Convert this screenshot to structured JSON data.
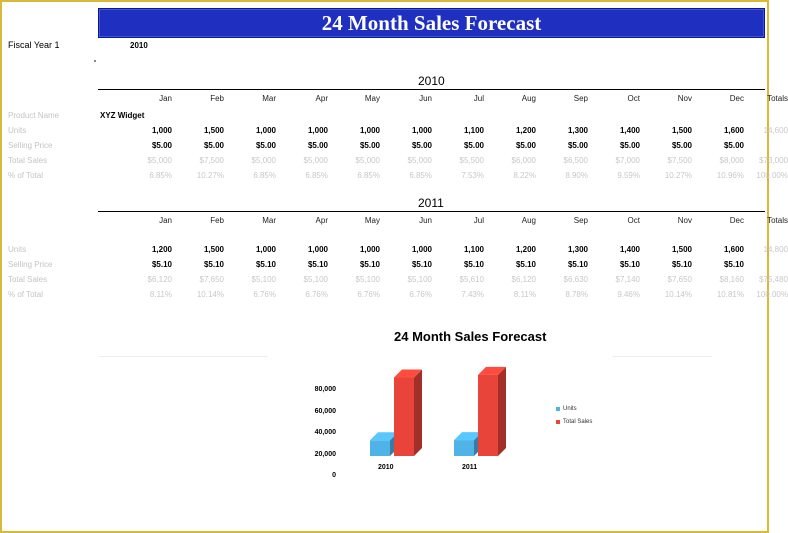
{
  "title": "24 Month Sales Forecast",
  "fiscal_year": {
    "label": "Fiscal Year 1",
    "value": "2010"
  },
  "columns": [
    "Jan",
    "Feb",
    "Mar",
    "Apr",
    "May",
    "Jun",
    "Jul",
    "Aug",
    "Sep",
    "Oct",
    "Nov",
    "Dec",
    "Totals"
  ],
  "years": [
    {
      "year": "2010",
      "rows": [
        {
          "label": "Product Name",
          "bold": true,
          "cells": [
            "XYZ Widget"
          ]
        },
        {
          "label": "Units",
          "bold": false,
          "cells": [
            "1,000",
            "1,500",
            "1,000",
            "1,000",
            "1,000",
            "1,000",
            "1,100",
            "1,200",
            "1,300",
            "1,400",
            "1,500",
            "1,600",
            "14,600"
          ]
        },
        {
          "label": "Selling Price",
          "bold": false,
          "cells": [
            "$5.00",
            "$5.00",
            "$5.00",
            "$5.00",
            "$5.00",
            "$5.00",
            "$5.00",
            "$5.00",
            "$5.00",
            "$5.00",
            "$5.00",
            "$5.00",
            ""
          ]
        },
        {
          "label": "Total Sales",
          "bold": false,
          "cells": [
            "$5,000",
            "$7,500",
            "$5,000",
            "$5,000",
            "$5,000",
            "$5,000",
            "$5,500",
            "$6,000",
            "$6,500",
            "$7,000",
            "$7,500",
            "$8,000",
            "$73,000"
          ]
        },
        {
          "label": "% of Total",
          "bold": false,
          "cells": [
            "6.85%",
            "10.27%",
            "6.85%",
            "6.85%",
            "6.85%",
            "6.85%",
            "7.53%",
            "8.22%",
            "8.90%",
            "9.59%",
            "10.27%",
            "10.96%",
            "100.00%"
          ]
        }
      ]
    },
    {
      "year": "2011",
      "rows": [
        {
          "label": "Units",
          "bold": false,
          "cells": [
            "1,200",
            "1,500",
            "1,000",
            "1,000",
            "1,000",
            "1,000",
            "1,100",
            "1,200",
            "1,300",
            "1,400",
            "1,500",
            "1,600",
            "14,800"
          ]
        },
        {
          "label": "Selling Price",
          "bold": false,
          "cells": [
            "$5.10",
            "$5.10",
            "$5.10",
            "$5.10",
            "$5.10",
            "$5.10",
            "$5.10",
            "$5.10",
            "$5.10",
            "$5.10",
            "$5.10",
            "$5.10",
            ""
          ]
        },
        {
          "label": "Total Sales",
          "bold": false,
          "cells": [
            "$6,120",
            "$7,650",
            "$5,100",
            "$5,100",
            "$5,100",
            "$5,100",
            "$5,610",
            "$6,120",
            "$6,630",
            "$7,140",
            "$7,650",
            "$8,160",
            "$75,480"
          ]
        },
        {
          "label": "% of Total",
          "bold": false,
          "cells": [
            "8.11%",
            "10.14%",
            "6.76%",
            "6.76%",
            "6.76%",
            "6.76%",
            "7.43%",
            "8.11%",
            "8.78%",
            "9.46%",
            "10.14%",
            "10.81%",
            "100.00%"
          ]
        }
      ]
    }
  ],
  "chart_data": {
    "type": "bar",
    "title": "24 Month Sales Forecast",
    "categories": [
      "2010",
      "2011"
    ],
    "yticks": [
      "80,000",
      "60,000",
      "40,000",
      "20,000",
      "0"
    ],
    "ylim": [
      0,
      80000
    ],
    "series": [
      {
        "name": "Units",
        "color": "#4fb3e8",
        "values": [
          14600,
          14800
        ]
      },
      {
        "name": "Total Sales",
        "color": "#e8443a",
        "values": [
          73000,
          75480
        ]
      }
    ],
    "legend": "right"
  }
}
